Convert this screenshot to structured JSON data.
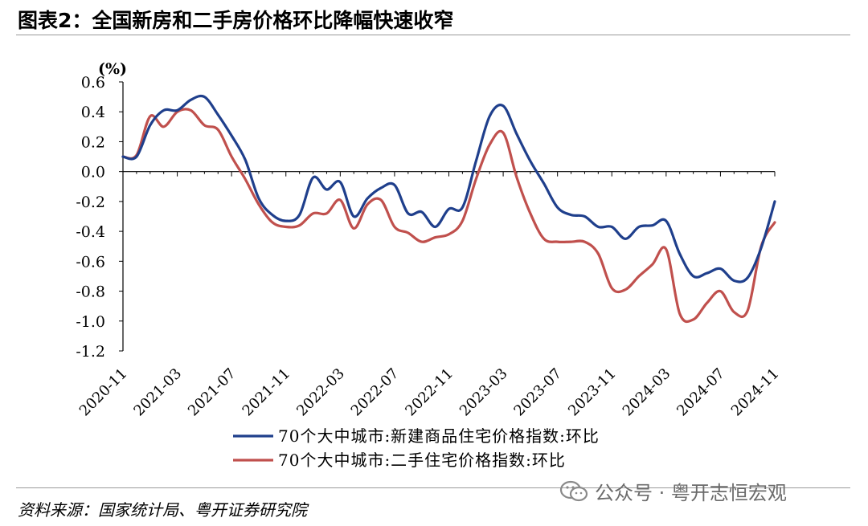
{
  "header": {
    "title": "图表2：全国新房和二手房价格环比降幅快速收窄"
  },
  "footer": {
    "source": "资料来源：国家统计局、粤开证券研究院"
  },
  "watermark": {
    "text": "公众号 · 粤开志恒宏观",
    "icon": "wechat-icon"
  },
  "chart_data": {
    "type": "line",
    "unit_label": "(%)",
    "ylim": [
      -1.2,
      0.6
    ],
    "yticks": [
      "0.6",
      "0.4",
      "0.2",
      "0.0",
      "-0.2",
      "-0.4",
      "-0.6",
      "-0.8",
      "-1.0",
      "-1.2"
    ],
    "xticks": [
      "2020-11",
      "2021-03",
      "2021-07",
      "2021-11",
      "2022-03",
      "2022-07",
      "2022-11",
      "2023-03",
      "2023-07",
      "2023-11",
      "2024-03",
      "2024-07",
      "2024-11"
    ],
    "x": [
      "2020-11",
      "2020-12",
      "2021-01",
      "2021-02",
      "2021-03",
      "2021-04",
      "2021-05",
      "2021-06",
      "2021-07",
      "2021-08",
      "2021-09",
      "2021-10",
      "2021-11",
      "2021-12",
      "2022-01",
      "2022-02",
      "2022-03",
      "2022-04",
      "2022-05",
      "2022-06",
      "2022-07",
      "2022-08",
      "2022-09",
      "2022-10",
      "2022-11",
      "2022-12",
      "2023-01",
      "2023-02",
      "2023-03",
      "2023-04",
      "2023-05",
      "2023-06",
      "2023-07",
      "2023-08",
      "2023-09",
      "2023-10",
      "2023-11",
      "2023-12",
      "2024-01",
      "2024-02",
      "2024-03",
      "2024-04",
      "2024-05",
      "2024-06",
      "2024-07",
      "2024-08",
      "2024-09",
      "2024-10",
      "2024-11"
    ],
    "legend_position": "bottom-center",
    "grid": false,
    "series": [
      {
        "name": "70个大中城市:新建商品住宅价格指数:环比",
        "color": "#1f3f8c",
        "values": [
          0.1,
          0.1,
          0.31,
          0.41,
          0.41,
          0.48,
          0.5,
          0.38,
          0.24,
          0.08,
          -0.18,
          -0.29,
          -0.33,
          -0.29,
          -0.04,
          -0.12,
          -0.07,
          -0.3,
          -0.18,
          -0.11,
          -0.09,
          -0.28,
          -0.27,
          -0.37,
          -0.25,
          -0.24,
          0.07,
          0.37,
          0.44,
          0.25,
          0.07,
          -0.08,
          -0.24,
          -0.29,
          -0.3,
          -0.37,
          -0.37,
          -0.45,
          -0.37,
          -0.36,
          -0.33,
          -0.55,
          -0.7,
          -0.68,
          -0.65,
          -0.73,
          -0.71,
          -0.51,
          -0.2
        ]
      },
      {
        "name": "70个大中城市:二手住宅价格指数:环比",
        "color": "#c0504d",
        "values": [
          0.1,
          0.11,
          0.37,
          0.3,
          0.4,
          0.41,
          0.31,
          0.28,
          0.1,
          -0.05,
          -0.22,
          -0.34,
          -0.37,
          -0.36,
          -0.28,
          -0.28,
          -0.19,
          -0.38,
          -0.22,
          -0.19,
          -0.37,
          -0.41,
          -0.47,
          -0.44,
          -0.42,
          -0.33,
          -0.05,
          0.18,
          0.26,
          -0.04,
          -0.28,
          -0.45,
          -0.47,
          -0.47,
          -0.47,
          -0.55,
          -0.78,
          -0.79,
          -0.7,
          -0.62,
          -0.52,
          -0.95,
          -0.99,
          -0.88,
          -0.8,
          -0.94,
          -0.93,
          -0.5,
          -0.34
        ]
      }
    ]
  }
}
